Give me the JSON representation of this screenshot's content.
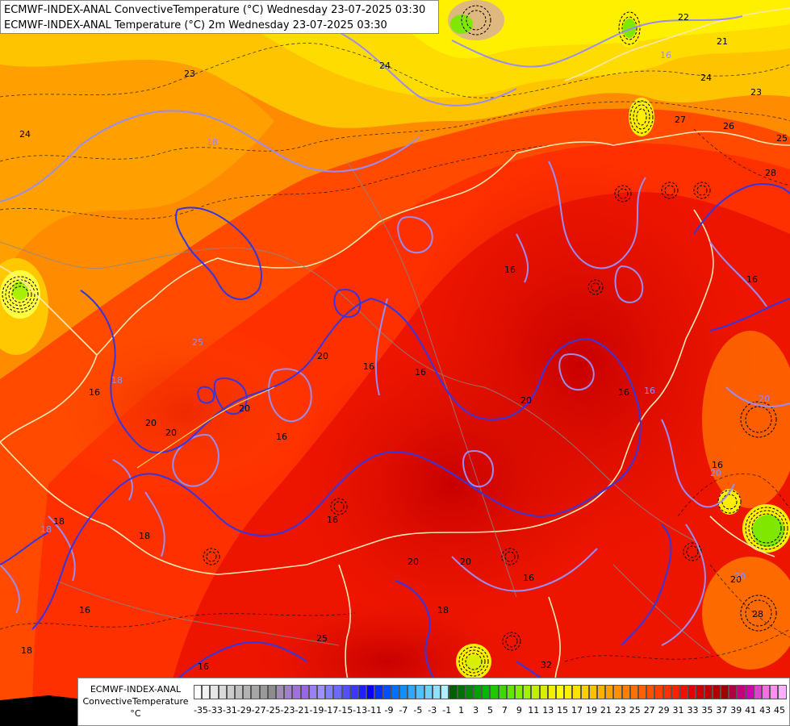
{
  "title": {
    "line1": "ECMWF-INDEX-ANAL ConvectiveTemperature (°C) Wednesday 23-07-2025 03:30",
    "line2": "ECMWF-INDEX-ANAL Temperature (°C) 2m Wednesday 23-07-2025 03:30"
  },
  "legend": {
    "title_line1": "ECMWF-INDEX-ANAL",
    "title_line2": "ConvectiveTemperature",
    "unit": "°C",
    "tick_labels": [
      "-35",
      "-33",
      "-31",
      "-29",
      "-27",
      "-25",
      "-23",
      "-21",
      "-19",
      "-17",
      "-15",
      "-13",
      "-11",
      "-9",
      "-7",
      "-5",
      "-3",
      "-1",
      "1",
      "3",
      "5",
      "7",
      "9",
      "11",
      "13",
      "15",
      "17",
      "19",
      "21",
      "23",
      "25",
      "27",
      "29",
      "31",
      "33",
      "35",
      "37",
      "39",
      "41",
      "43",
      "45"
    ],
    "colors": [
      "#ffffff",
      "#f2f2f2",
      "#e6e6e6",
      "#d9d9d9",
      "#cccccc",
      "#bfbfbf",
      "#b3b3b3",
      "#a6a6a6",
      "#999999",
      "#8c8c8c",
      "#a08cb4",
      "#a080c8",
      "#a070dc",
      "#9a66e6",
      "#9a80f0",
      "#a090ff",
      "#8080ff",
      "#6a6aff",
      "#5050ff",
      "#3838ff",
      "#2020ff",
      "#0000ff",
      "#0030ff",
      "#0050ff",
      "#0070ff",
      "#1090ff",
      "#30a8ff",
      "#50c0ff",
      "#70d0ff",
      "#90e0ff",
      "#b0f0ff",
      "#006000",
      "#007000",
      "#008800",
      "#00a000",
      "#00b800",
      "#20c800",
      "#40d800",
      "#60e800",
      "#80f000",
      "#a0f000",
      "#c0f000",
      "#d8f000",
      "#f0f000",
      "#ffff00",
      "#fff000",
      "#ffe000",
      "#ffd000",
      "#ffc000",
      "#ffb000",
      "#ffa000",
      "#ff9000",
      "#ff8000",
      "#ff7000",
      "#ff6000",
      "#ff5000",
      "#ff4000",
      "#ff3000",
      "#ff2000",
      "#f01000",
      "#e00000",
      "#d00000",
      "#c00000",
      "#b00000",
      "#a00000",
      "#b00040",
      "#c00080",
      "#d000b0",
      "#e040d0",
      "#f070e0",
      "#ff90f0",
      "#ffb0ff"
    ]
  },
  "contour_labels_dark": [
    "22",
    "21",
    "23",
    "24",
    "24",
    "27",
    "26",
    "25",
    "28",
    "23",
    "16",
    "16",
    "16",
    "16",
    "20",
    "20",
    "20",
    "16",
    "16",
    "16",
    "16",
    "16",
    "20",
    "20",
    "16",
    "20",
    "18",
    "18",
    "20",
    "16",
    "16",
    "28",
    "20",
    "18",
    "18",
    "25",
    "24",
    "32"
  ],
  "contour_labels_light": [
    "18",
    "16",
    "16",
    "18",
    "18",
    "20",
    "20",
    "25",
    "20"
  ]
}
